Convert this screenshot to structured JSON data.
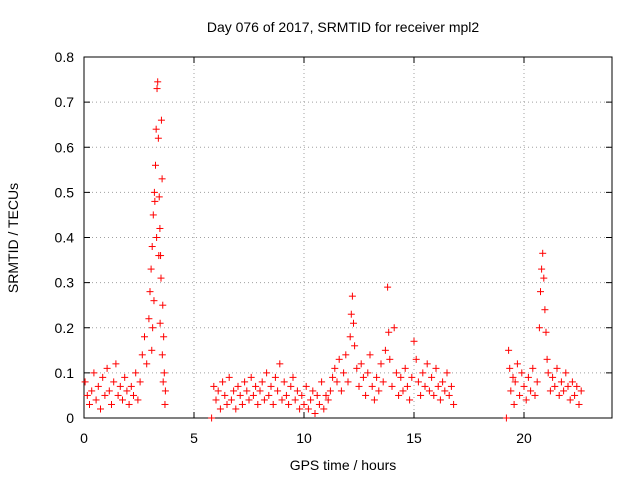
{
  "chart_data": {
    "type": "scatter",
    "title": "Day 076 of 2017, SRMTID for receiver mpl2",
    "xlabel": "GPS time / hours",
    "ylabel": "SRMTID / TECUs",
    "xlim": [
      0,
      24
    ],
    "ylim": [
      0,
      0.8
    ],
    "xticks": [
      0,
      5,
      10,
      15,
      20
    ],
    "xtick_labels": [
      "0",
      "5",
      "10",
      "15",
      "20"
    ],
    "yticks": [
      0,
      0.1,
      0.2,
      0.3,
      0.4,
      0.5,
      0.6,
      0.7,
      0.8
    ],
    "ytick_labels": [
      "0",
      "0.1",
      "0.2",
      "0.3",
      "0.4",
      "0.5",
      "0.6",
      "0.7",
      "0.8"
    ],
    "grid": true,
    "marker": "+",
    "color": "#ff0000",
    "series": [
      {
        "name": "SRMTID",
        "points": [
          [
            0.05,
            0.08
          ],
          [
            0.15,
            0.05
          ],
          [
            0.25,
            0.03
          ],
          [
            0.35,
            0.06
          ],
          [
            0.45,
            0.1
          ],
          [
            0.55,
            0.04
          ],
          [
            0.65,
            0.07
          ],
          [
            0.75,
            0.02
          ],
          [
            0.85,
            0.09
          ],
          [
            0.95,
            0.05
          ],
          [
            1.05,
            0.11
          ],
          [
            1.15,
            0.06
          ],
          [
            1.25,
            0.03
          ],
          [
            1.35,
            0.08
          ],
          [
            1.45,
            0.12
          ],
          [
            1.55,
            0.05
          ],
          [
            1.65,
            0.07
          ],
          [
            1.75,
            0.04
          ],
          [
            1.85,
            0.09
          ],
          [
            1.95,
            0.06
          ],
          [
            2.05,
            0.03
          ],
          [
            2.15,
            0.07
          ],
          [
            2.25,
            0.05
          ],
          [
            2.35,
            0.1
          ],
          [
            2.45,
            0.04
          ],
          [
            2.55,
            0.08
          ],
          [
            2.65,
            0.14
          ],
          [
            2.75,
            0.18
          ],
          [
            2.85,
            0.12
          ],
          [
            2.95,
            0.22
          ],
          [
            3.0,
            0.28
          ],
          [
            3.05,
            0.33
          ],
          [
            3.1,
            0.38
          ],
          [
            3.15,
            0.45
          ],
          [
            3.2,
            0.5
          ],
          [
            3.25,
            0.56
          ],
          [
            3.28,
            0.64
          ],
          [
            3.32,
            0.73
          ],
          [
            3.35,
            0.745
          ],
          [
            3.38,
            0.62
          ],
          [
            3.42,
            0.49
          ],
          [
            3.45,
            0.42
          ],
          [
            3.48,
            0.36
          ],
          [
            3.5,
            0.31
          ],
          [
            3.52,
            0.66
          ],
          [
            3.55,
            0.53
          ],
          [
            3.58,
            0.25
          ],
          [
            3.62,
            0.18
          ],
          [
            3.65,
            0.1
          ],
          [
            3.7,
            0.06
          ],
          [
            3.4,
            0.36
          ],
          [
            3.3,
            0.4
          ],
          [
            3.22,
            0.48
          ],
          [
            3.18,
            0.26
          ],
          [
            3.12,
            0.2
          ],
          [
            3.08,
            0.15
          ],
          [
            3.46,
            0.21
          ],
          [
            3.56,
            0.14
          ],
          [
            3.6,
            0.08
          ],
          [
            3.68,
            0.03
          ],
          [
            5.8,
            0.0
          ],
          [
            5.9,
            0.07
          ],
          [
            6.0,
            0.04
          ],
          [
            6.1,
            0.06
          ],
          [
            6.2,
            0.02
          ],
          [
            6.3,
            0.08
          ],
          [
            6.4,
            0.05
          ],
          [
            6.5,
            0.03
          ],
          [
            6.6,
            0.09
          ],
          [
            6.7,
            0.04
          ],
          [
            6.8,
            0.06
          ],
          [
            6.9,
            0.02
          ],
          [
            7.0,
            0.07
          ],
          [
            7.1,
            0.05
          ],
          [
            7.2,
            0.03
          ],
          [
            7.3,
            0.08
          ],
          [
            7.4,
            0.06
          ],
          [
            7.5,
            0.04
          ],
          [
            7.6,
            0.09
          ],
          [
            7.7,
            0.05
          ],
          [
            7.8,
            0.07
          ],
          [
            7.9,
            0.03
          ],
          [
            8.0,
            0.06
          ],
          [
            8.1,
            0.08
          ],
          [
            8.2,
            0.04
          ],
          [
            8.3,
            0.1
          ],
          [
            8.4,
            0.05
          ],
          [
            8.5,
            0.07
          ],
          [
            8.6,
            0.03
          ],
          [
            8.7,
            0.09
          ],
          [
            8.8,
            0.06
          ],
          [
            8.9,
            0.12
          ],
          [
            9.0,
            0.04
          ],
          [
            9.1,
            0.08
          ],
          [
            9.2,
            0.05
          ],
          [
            9.3,
            0.03
          ],
          [
            9.4,
            0.07
          ],
          [
            9.5,
            0.09
          ],
          [
            9.6,
            0.04
          ],
          [
            9.7,
            0.06
          ],
          [
            9.8,
            0.02
          ],
          [
            9.9,
            0.05
          ],
          [
            10.0,
            0.03
          ],
          [
            10.1,
            0.07
          ],
          [
            10.2,
            0.02
          ],
          [
            10.3,
            0.04
          ],
          [
            10.4,
            0.06
          ],
          [
            10.5,
            0.01
          ],
          [
            10.6,
            0.05
          ],
          [
            10.7,
            0.03
          ],
          [
            10.8,
            0.08
          ],
          [
            10.9,
            0.02
          ],
          [
            11.0,
            0.05
          ],
          [
            11.1,
            0.04
          ],
          [
            11.2,
            0.06
          ],
          [
            11.3,
            0.09
          ],
          [
            11.4,
            0.11
          ],
          [
            11.5,
            0.08
          ],
          [
            11.6,
            0.13
          ],
          [
            11.7,
            0.06
          ],
          [
            11.8,
            0.1
          ],
          [
            11.9,
            0.14
          ],
          [
            12.0,
            0.08
          ],
          [
            12.1,
            0.18
          ],
          [
            12.15,
            0.23
          ],
          [
            12.2,
            0.27
          ],
          [
            12.25,
            0.21
          ],
          [
            12.3,
            0.16
          ],
          [
            12.4,
            0.11
          ],
          [
            12.5,
            0.07
          ],
          [
            12.6,
            0.12
          ],
          [
            12.7,
            0.09
          ],
          [
            12.8,
            0.05
          ],
          [
            12.9,
            0.1
          ],
          [
            13.0,
            0.14
          ],
          [
            13.1,
            0.07
          ],
          [
            13.2,
            0.04
          ],
          [
            13.3,
            0.09
          ],
          [
            13.4,
            0.06
          ],
          [
            13.5,
            0.12
          ],
          [
            13.6,
            0.08
          ],
          [
            13.7,
            0.15
          ],
          [
            13.8,
            0.29
          ],
          [
            13.85,
            0.19
          ],
          [
            13.9,
            0.13
          ],
          [
            14.0,
            0.07
          ],
          [
            14.1,
            0.2
          ],
          [
            14.2,
            0.1
          ],
          [
            14.3,
            0.05
          ],
          [
            14.4,
            0.09
          ],
          [
            14.5,
            0.06
          ],
          [
            14.6,
            0.11
          ],
          [
            14.7,
            0.07
          ],
          [
            14.8,
            0.04
          ],
          [
            14.9,
            0.09
          ],
          [
            15.0,
            0.17
          ],
          [
            15.1,
            0.13
          ],
          [
            15.2,
            0.08
          ],
          [
            15.3,
            0.05
          ],
          [
            15.4,
            0.1
          ],
          [
            15.5,
            0.07
          ],
          [
            15.6,
            0.12
          ],
          [
            15.7,
            0.06
          ],
          [
            15.8,
            0.09
          ],
          [
            15.9,
            0.05
          ],
          [
            16.0,
            0.11
          ],
          [
            16.1,
            0.07
          ],
          [
            16.2,
            0.04
          ],
          [
            16.3,
            0.08
          ],
          [
            16.4,
            0.06
          ],
          [
            16.5,
            0.1
          ],
          [
            16.6,
            0.05
          ],
          [
            16.7,
            0.07
          ],
          [
            16.8,
            0.03
          ],
          [
            19.2,
            0.0
          ],
          [
            19.3,
            0.15
          ],
          [
            19.35,
            0.11
          ],
          [
            19.4,
            0.06
          ],
          [
            19.5,
            0.09
          ],
          [
            19.55,
            0.03
          ],
          [
            19.6,
            0.08
          ],
          [
            19.7,
            0.12
          ],
          [
            19.8,
            0.05
          ],
          [
            19.9,
            0.1
          ],
          [
            20.0,
            0.07
          ],
          [
            20.1,
            0.04
          ],
          [
            20.2,
            0.09
          ],
          [
            20.3,
            0.06
          ],
          [
            20.4,
            0.11
          ],
          [
            20.5,
            0.05
          ],
          [
            20.6,
            0.08
          ],
          [
            20.7,
            0.2
          ],
          [
            20.75,
            0.28
          ],
          [
            20.8,
            0.33
          ],
          [
            20.85,
            0.365
          ],
          [
            20.9,
            0.31
          ],
          [
            20.95,
            0.24
          ],
          [
            21.0,
            0.19
          ],
          [
            21.05,
            0.13
          ],
          [
            21.1,
            0.1
          ],
          [
            21.2,
            0.06
          ],
          [
            21.3,
            0.09
          ],
          [
            21.4,
            0.07
          ],
          [
            21.5,
            0.11
          ],
          [
            21.6,
            0.05
          ],
          [
            21.7,
            0.08
          ],
          [
            21.8,
            0.06
          ],
          [
            21.9,
            0.1
          ],
          [
            22.0,
            0.07
          ],
          [
            22.1,
            0.04
          ],
          [
            22.2,
            0.08
          ],
          [
            22.3,
            0.05
          ],
          [
            22.4,
            0.07
          ],
          [
            22.5,
            0.03
          ],
          [
            22.6,
            0.06
          ]
        ]
      }
    ]
  }
}
